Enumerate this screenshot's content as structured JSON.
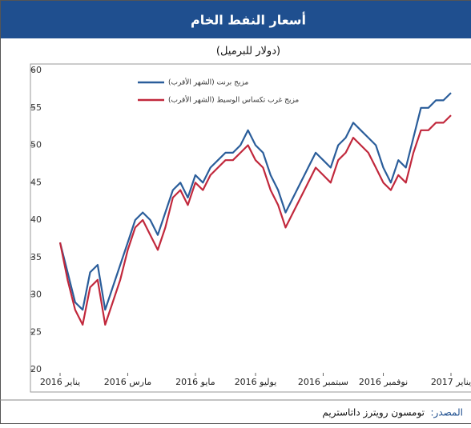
{
  "chart_data": {
    "type": "line",
    "title": "أسعار النفط الخام",
    "subtitle": "(دولار للبرميل)",
    "source_label": "المصدر:",
    "source": "تومسون رويترز داتاستريم",
    "categories": [
      "يناير 2016",
      null,
      null,
      null,
      null,
      null,
      null,
      null,
      null,
      "مارس 2016",
      null,
      null,
      null,
      null,
      null,
      null,
      null,
      null,
      "مايو 2016",
      null,
      null,
      null,
      null,
      null,
      null,
      null,
      "يوليو 2016",
      null,
      null,
      null,
      null,
      null,
      null,
      null,
      null,
      "سبتمبر 2016",
      null,
      null,
      null,
      null,
      null,
      null,
      null,
      "نوفمبر 2016",
      null,
      null,
      null,
      null,
      null,
      null,
      null,
      null,
      "يناير 2017"
    ],
    "series": [
      {
        "name": "مزيج برنت (الشهر الأقرب)",
        "color": "#2a5d9a",
        "values": [
          37,
          33,
          29,
          28,
          33,
          34,
          28,
          31,
          34,
          37,
          40,
          41,
          40,
          38,
          41,
          44,
          45,
          43,
          46,
          45,
          47,
          48,
          49,
          49,
          50,
          52,
          50,
          49,
          46,
          44,
          41,
          43,
          45,
          47,
          49,
          48,
          47,
          50,
          51,
          53,
          52,
          51,
          50,
          47,
          45,
          48,
          47,
          51,
          55,
          55,
          56,
          56,
          57
        ]
      },
      {
        "name": "مزيج غرب تكساس الوسيط (الشهر الأقرب)",
        "color": "#c1283c",
        "values": [
          37,
          32,
          28,
          26,
          31,
          32,
          26,
          29,
          32,
          36,
          39,
          40,
          38,
          36,
          39,
          43,
          44,
          42,
          45,
          44,
          46,
          47,
          48,
          48,
          49,
          50,
          48,
          47,
          44,
          42,
          39,
          41,
          43,
          45,
          47,
          46,
          45,
          48,
          49,
          51,
          50,
          49,
          47,
          45,
          44,
          46,
          45,
          49,
          52,
          52,
          53,
          53,
          54
        ]
      }
    ],
    "ylim": [
      20,
      60
    ],
    "yticks": [
      20,
      25,
      30,
      35,
      40,
      45,
      50,
      55,
      60
    ],
    "grid": false
  }
}
